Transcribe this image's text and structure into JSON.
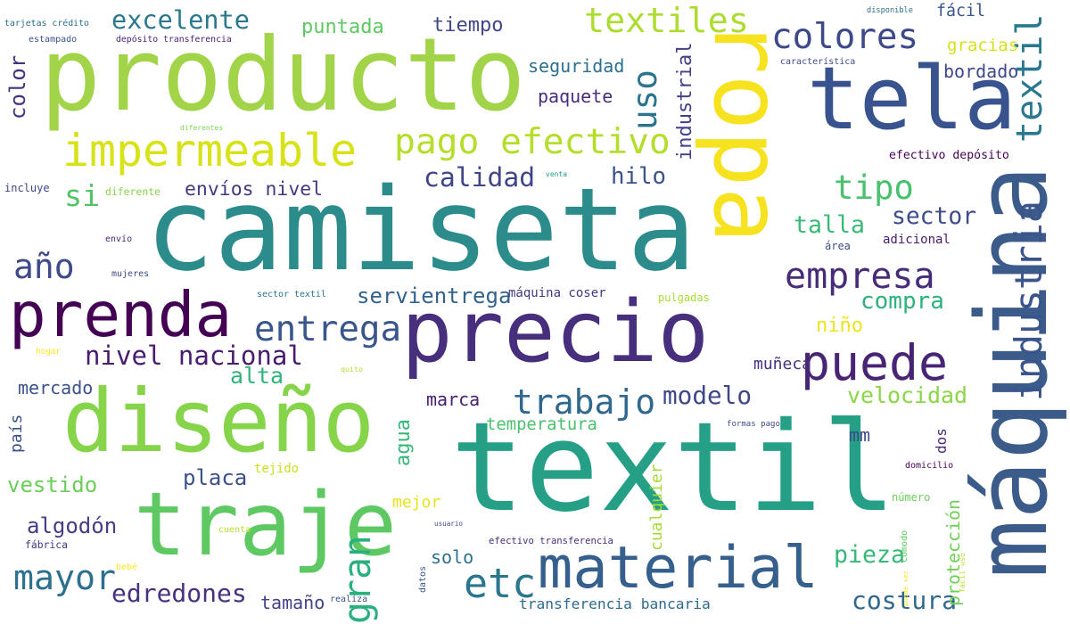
{
  "words": [
    {
      "text": "camiseta",
      "color": "#2c8c8c"
    },
    {
      "text": "producto",
      "color": "#a2d44a"
    },
    {
      "text": "textil",
      "color": "#25a087"
    },
    {
      "text": "precio",
      "color": "#472f7d"
    },
    {
      "text": "ropa",
      "color": "#f6e21f"
    },
    {
      "text": "máquina",
      "color": "#3b5b8a"
    },
    {
      "text": "diseño",
      "color": "#86d449"
    },
    {
      "text": "tela",
      "color": "#38538e"
    },
    {
      "text": "traje",
      "color": "#5ec962"
    },
    {
      "text": "prenda",
      "color": "#440154"
    },
    {
      "text": "material",
      "color": "#355f8d"
    },
    {
      "text": "impermeable",
      "color": "#d8e219"
    },
    {
      "text": "pago efectivo",
      "color": "#b5de2b"
    },
    {
      "text": "industria",
      "color": "#3a548c"
    },
    {
      "text": "textil",
      "color": "#2a788e"
    },
    {
      "text": "puede",
      "color": "#482475"
    },
    {
      "text": "entrega",
      "color": "#39568c"
    },
    {
      "text": "colores",
      "color": "#3e4989"
    },
    {
      "text": "textiles",
      "color": "#addc30"
    },
    {
      "text": "empresa",
      "color": "#472c7a"
    },
    {
      "text": "trabajo",
      "color": "#31688e"
    },
    {
      "text": "gran",
      "color": "#2ab07f"
    },
    {
      "text": "mayor",
      "color": "#2d708e"
    },
    {
      "text": "etc",
      "color": "#2a768e"
    },
    {
      "text": "tipo",
      "color": "#4ac16d"
    },
    {
      "text": "año",
      "color": "#3e4a89"
    },
    {
      "text": "nivel nacional",
      "color": "#481c6e"
    },
    {
      "text": "excelente",
      "color": "#2a788e"
    },
    {
      "text": "calidad",
      "color": "#414487"
    },
    {
      "text": "edredones",
      "color": "#46327e"
    },
    {
      "text": "costura",
      "color": "#31688e"
    },
    {
      "text": "protección",
      "color": "#70cf57"
    },
    {
      "text": "uso",
      "color": "#2b748e"
    },
    {
      "text": "si",
      "color": "#52c569"
    },
    {
      "text": "hilo",
      "color": "#3b528b"
    },
    {
      "text": "modelo",
      "color": "#3f4788"
    },
    {
      "text": "pieza",
      "color": "#37b878"
    },
    {
      "text": "talla",
      "color": "#3aba76"
    },
    {
      "text": "sector",
      "color": "#3e4c8a"
    },
    {
      "text": "compra",
      "color": "#2db27d"
    },
    {
      "text": "velocidad",
      "color": "#8bd646"
    },
    {
      "text": "servientrega",
      "color": "#33638d"
    },
    {
      "text": "envíos nivel",
      "color": "#453781"
    },
    {
      "text": "industrial",
      "color": "#424086"
    },
    {
      "text": "color",
      "color": "#46337e"
    },
    {
      "text": "alta",
      "color": "#2fb47c"
    },
    {
      "text": "algodón",
      "color": "#433e85"
    },
    {
      "text": "vestido",
      "color": "#6ccd5a"
    },
    {
      "text": "placa",
      "color": "#3c508b"
    },
    {
      "text": "agua",
      "color": "#35b779"
    },
    {
      "text": "puntada",
      "color": "#5ec962"
    },
    {
      "text": "tiempo",
      "color": "#404688"
    },
    {
      "text": "seguridad",
      "color": "#2d708e"
    },
    {
      "text": "paquete",
      "color": "#472d7b"
    },
    {
      "text": "bordado",
      "color": "#3f4889"
    },
    {
      "text": "fácil",
      "color": "#39568c"
    },
    {
      "text": "gracias",
      "color": "#d5e21a"
    },
    {
      "text": "niño",
      "color": "#ece51b"
    },
    {
      "text": "muñeca",
      "color": "#46327e"
    },
    {
      "text": "mercado",
      "color": "#3b528b"
    },
    {
      "text": "marca",
      "color": "#482173"
    },
    {
      "text": "temperatura",
      "color": "#4ac16d"
    },
    {
      "text": "transferencia bancaria",
      "color": "#2f6b8e"
    },
    {
      "text": "tamaño",
      "color": "#404387"
    },
    {
      "text": "solo",
      "color": "#2c718e"
    },
    {
      "text": "mejor",
      "color": "#e5e419"
    },
    {
      "text": "país",
      "color": "#3c4f8a"
    },
    {
      "text": "mm",
      "color": "#3f4889"
    },
    {
      "text": "dos",
      "color": "#482878"
    },
    {
      "text": "cualquier",
      "color": "#a5db36"
    },
    {
      "text": "tejido",
      "color": "#c8e020"
    },
    {
      "text": "efectivo depósito",
      "color": "#440154"
    },
    {
      "text": "adicional",
      "color": "#481a6c"
    },
    {
      "text": "área",
      "color": "#3c4f8a"
    },
    {
      "text": "máquina coser",
      "color": "#453781"
    },
    {
      "text": "pulgadas",
      "color": "#a8db34"
    },
    {
      "text": "domicilio",
      "color": "#440154"
    },
    {
      "text": "número",
      "color": "#6ccd5a"
    },
    {
      "text": "formas pago",
      "color": "#3e4a89"
    },
    {
      "text": "efectivo transferencia",
      "color": "#46307e"
    },
    {
      "text": "fábrica",
      "color": "#443983"
    },
    {
      "text": "usuario",
      "color": "#3e4c8a"
    },
    {
      "text": "incluye",
      "color": "#404688"
    },
    {
      "text": "diferente",
      "color": "#86d549"
    },
    {
      "text": "envío",
      "color": "#482878"
    },
    {
      "text": "mujeres",
      "color": "#3e4a89"
    },
    {
      "text": "sector textil",
      "color": "#2a788e"
    },
    {
      "text": "tarjetas crédito",
      "color": "#2c718e"
    },
    {
      "text": "estampado",
      "color": "#3a548c"
    },
    {
      "text": "depósito transferencia",
      "color": "#481f70"
    },
    {
      "text": "disponible",
      "color": "#2d708e"
    },
    {
      "text": "característica",
      "color": "#3e4c8a"
    },
    {
      "text": "venta",
      "color": "#1f9e89"
    },
    {
      "text": "diferentes",
      "color": "#7fd34e"
    },
    {
      "text": "quito",
      "color": "#addc30"
    },
    {
      "text": "hogar",
      "color": "#fde725"
    },
    {
      "text": "bebé",
      "color": "#fde725"
    },
    {
      "text": "fácil uso",
      "color": "#b8de29"
    },
    {
      "text": "datos",
      "color": "#3a548c"
    },
    {
      "text": "puede ser",
      "color": "#efe51c"
    },
    {
      "text": "cómodo",
      "color": "#5ec962"
    },
    {
      "text": "cuenta",
      "color": "#b5de2b"
    },
    {
      "text": "realiza",
      "color": "#3b528b"
    }
  ]
}
